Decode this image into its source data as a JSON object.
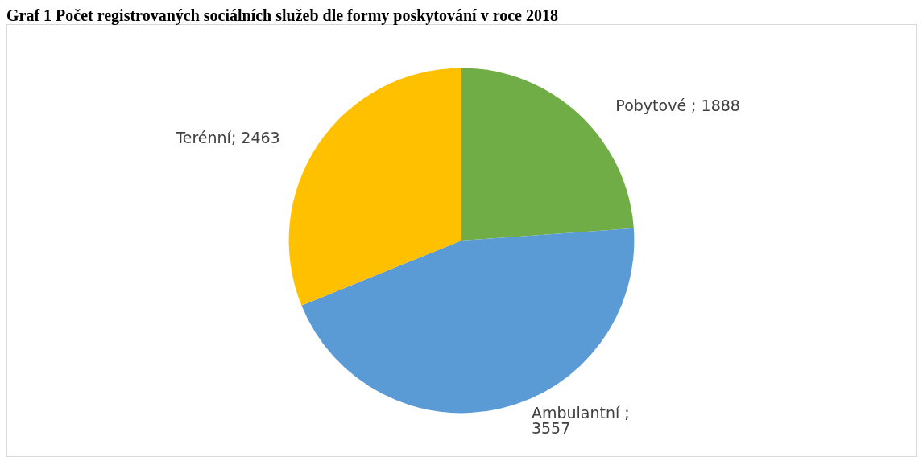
{
  "chart_data": {
    "type": "pie",
    "title": "Graf 1 Počet registrovaných sociálních služeb dle formy poskytování v roce 2018",
    "categories": [
      "Pobytové",
      "Ambulantní",
      "Terénní"
    ],
    "values": [
      1888,
      3557,
      2463
    ],
    "value_labels": [
      " ; 1888",
      " ;\n3557",
      "; 2463"
    ],
    "colors": [
      "#70ad47",
      "#5b9bd5",
      "#ffc000"
    ],
    "legend": false
  }
}
